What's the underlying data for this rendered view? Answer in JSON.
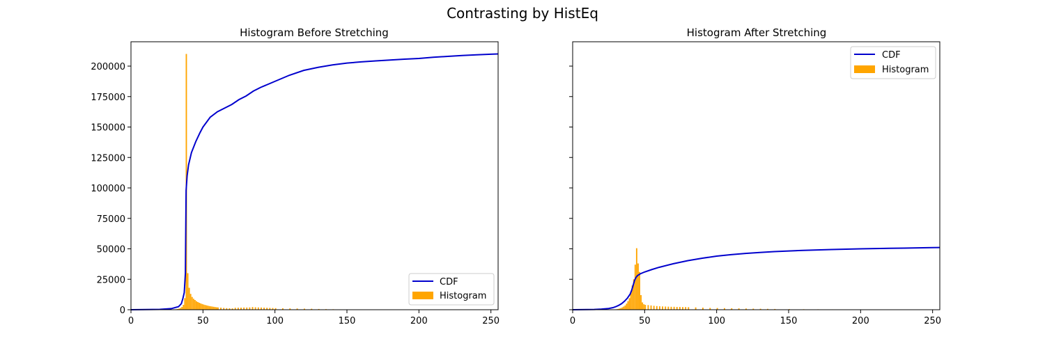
{
  "suptitle": "Contrasting by HistEq",
  "chart_data": [
    {
      "type": "bar+line",
      "title": "Histogram Before Stretching",
      "xlabel": "",
      "ylabel": "",
      "xlim": [
        0,
        255
      ],
      "ylim": [
        0,
        220000
      ],
      "xticks": [
        0,
        50,
        100,
        150,
        200,
        250
      ],
      "yticks": [
        0,
        25000,
        50000,
        75000,
        100000,
        125000,
        150000,
        175000,
        200000
      ],
      "grid": false,
      "legend": "lower-right",
      "colors": {
        "cdf": "#0000cd",
        "histogram": "#ffa500"
      },
      "series": [
        {
          "name": "CDF",
          "kind": "line",
          "x": [
            0,
            20,
            28,
            33,
            35,
            36,
            37,
            37.8,
            38.3,
            39,
            40,
            42,
            45,
            48,
            50,
            55,
            60,
            65,
            70,
            75,
            80,
            85,
            90,
            100,
            110,
            120,
            130,
            140,
            150,
            160,
            170,
            180,
            190,
            200,
            210,
            220,
            230,
            240,
            250,
            255
          ],
          "y": [
            0,
            300,
            900,
            2500,
            5000,
            9000,
            14000,
            30000,
            98000,
            110000,
            119000,
            129000,
            138000,
            145500,
            150000,
            158000,
            162500,
            165500,
            168500,
            172500,
            175500,
            179500,
            182500,
            187500,
            192500,
            196500,
            199000,
            201000,
            202500,
            203500,
            204300,
            205000,
            205700,
            206300,
            207300,
            208000,
            208700,
            209300,
            209800,
            210000
          ]
        },
        {
          "name": "Histogram",
          "kind": "bar",
          "x": [
            30,
            31,
            32,
            33,
            34,
            35,
            36,
            37,
            38,
            39,
            40,
            41,
            42,
            43,
            44,
            45,
            46,
            47,
            48,
            49,
            50,
            51,
            52,
            53,
            54,
            55,
            56,
            57,
            58,
            59,
            60,
            62,
            64,
            66,
            68,
            70,
            72,
            74,
            76,
            78,
            80,
            82,
            84,
            86,
            88,
            90,
            92,
            94,
            96,
            98,
            100,
            105,
            110,
            115,
            120,
            125,
            130,
            135,
            140,
            145,
            150
          ],
          "y": [
            300,
            400,
            600,
            900,
            1400,
            2300,
            4000,
            9500,
            210000,
            30000,
            18000,
            13000,
            10500,
            9000,
            8000,
            7000,
            6300,
            5700,
            5200,
            4700,
            4300,
            3900,
            3600,
            3300,
            3000,
            2800,
            2600,
            2400,
            2200,
            2000,
            1900,
            1700,
            1500,
            1300,
            1200,
            1100,
            1600,
            1700,
            1700,
            1800,
            1800,
            1900,
            2200,
            2000,
            1900,
            1800,
            1700,
            1600,
            1500,
            1400,
            1300,
            1200,
            1100,
            1000,
            900,
            800,
            600,
            500,
            400,
            300,
            200
          ]
        }
      ]
    },
    {
      "type": "bar+line",
      "title": "Histogram After Stretching",
      "xlabel": "",
      "ylabel": "",
      "xlim": [
        0,
        255
      ],
      "ylim": [
        0,
        220000
      ],
      "xticks": [
        0,
        50,
        100,
        150,
        200,
        250
      ],
      "yticks": [
        0,
        25000,
        50000,
        75000,
        100000,
        125000,
        150000,
        175000,
        200000
      ],
      "shared_y": true,
      "grid": false,
      "legend": "upper-right",
      "colors": {
        "cdf": "#0000cd",
        "histogram": "#ffa500"
      },
      "series": [
        {
          "name": "CDF",
          "kind": "line",
          "x": [
            0,
            15,
            20,
            25,
            28,
            30,
            32,
            34,
            36,
            38,
            40,
            41,
            42,
            43,
            44,
            45,
            47,
            50,
            55,
            60,
            70,
            80,
            90,
            100,
            110,
            120,
            130,
            140,
            150,
            160,
            170,
            180,
            190,
            200,
            210,
            220,
            230,
            240,
            250,
            255
          ],
          "y": [
            0,
            200,
            500,
            1000,
            1700,
            2500,
            3600,
            5000,
            7000,
            9500,
            13000,
            16000,
            20000,
            24000,
            26500,
            28000,
            29500,
            31000,
            33000,
            34800,
            37800,
            40300,
            42300,
            44000,
            45200,
            46200,
            47000,
            47700,
            48200,
            48700,
            49100,
            49400,
            49700,
            50000,
            50200,
            50400,
            50600,
            50800,
            51000,
            51100
          ]
        },
        {
          "name": "Histogram",
          "kind": "bar",
          "x": [
            30,
            31,
            32,
            33,
            34,
            35,
            36,
            37,
            38,
            39,
            40,
            41,
            42,
            43,
            44,
            45,
            46,
            47,
            48,
            49,
            50,
            52,
            54,
            56,
            58,
            60,
            62,
            64,
            66,
            68,
            70,
            72,
            74,
            76,
            78,
            80,
            85,
            90,
            95,
            100,
            105,
            110,
            115,
            120,
            125,
            130,
            135,
            140,
            150,
            160,
            170,
            180,
            190,
            200,
            210,
            222
          ],
          "y": [
            400,
            600,
            900,
            1300,
            1900,
            2600,
            3500,
            5000,
            7000,
            9500,
            14000,
            20000,
            25000,
            37000,
            50500,
            38000,
            31000,
            12000,
            6000,
            4500,
            4000,
            3800,
            3500,
            3200,
            3000,
            2800,
            2700,
            2600,
            2500,
            2400,
            2400,
            2300,
            2300,
            2200,
            2200,
            2100,
            1900,
            1700,
            1500,
            1400,
            1300,
            1200,
            1100,
            1000,
            900,
            800,
            700,
            600,
            500,
            400,
            350,
            300,
            250,
            200,
            150,
            150
          ]
        }
      ]
    }
  ]
}
